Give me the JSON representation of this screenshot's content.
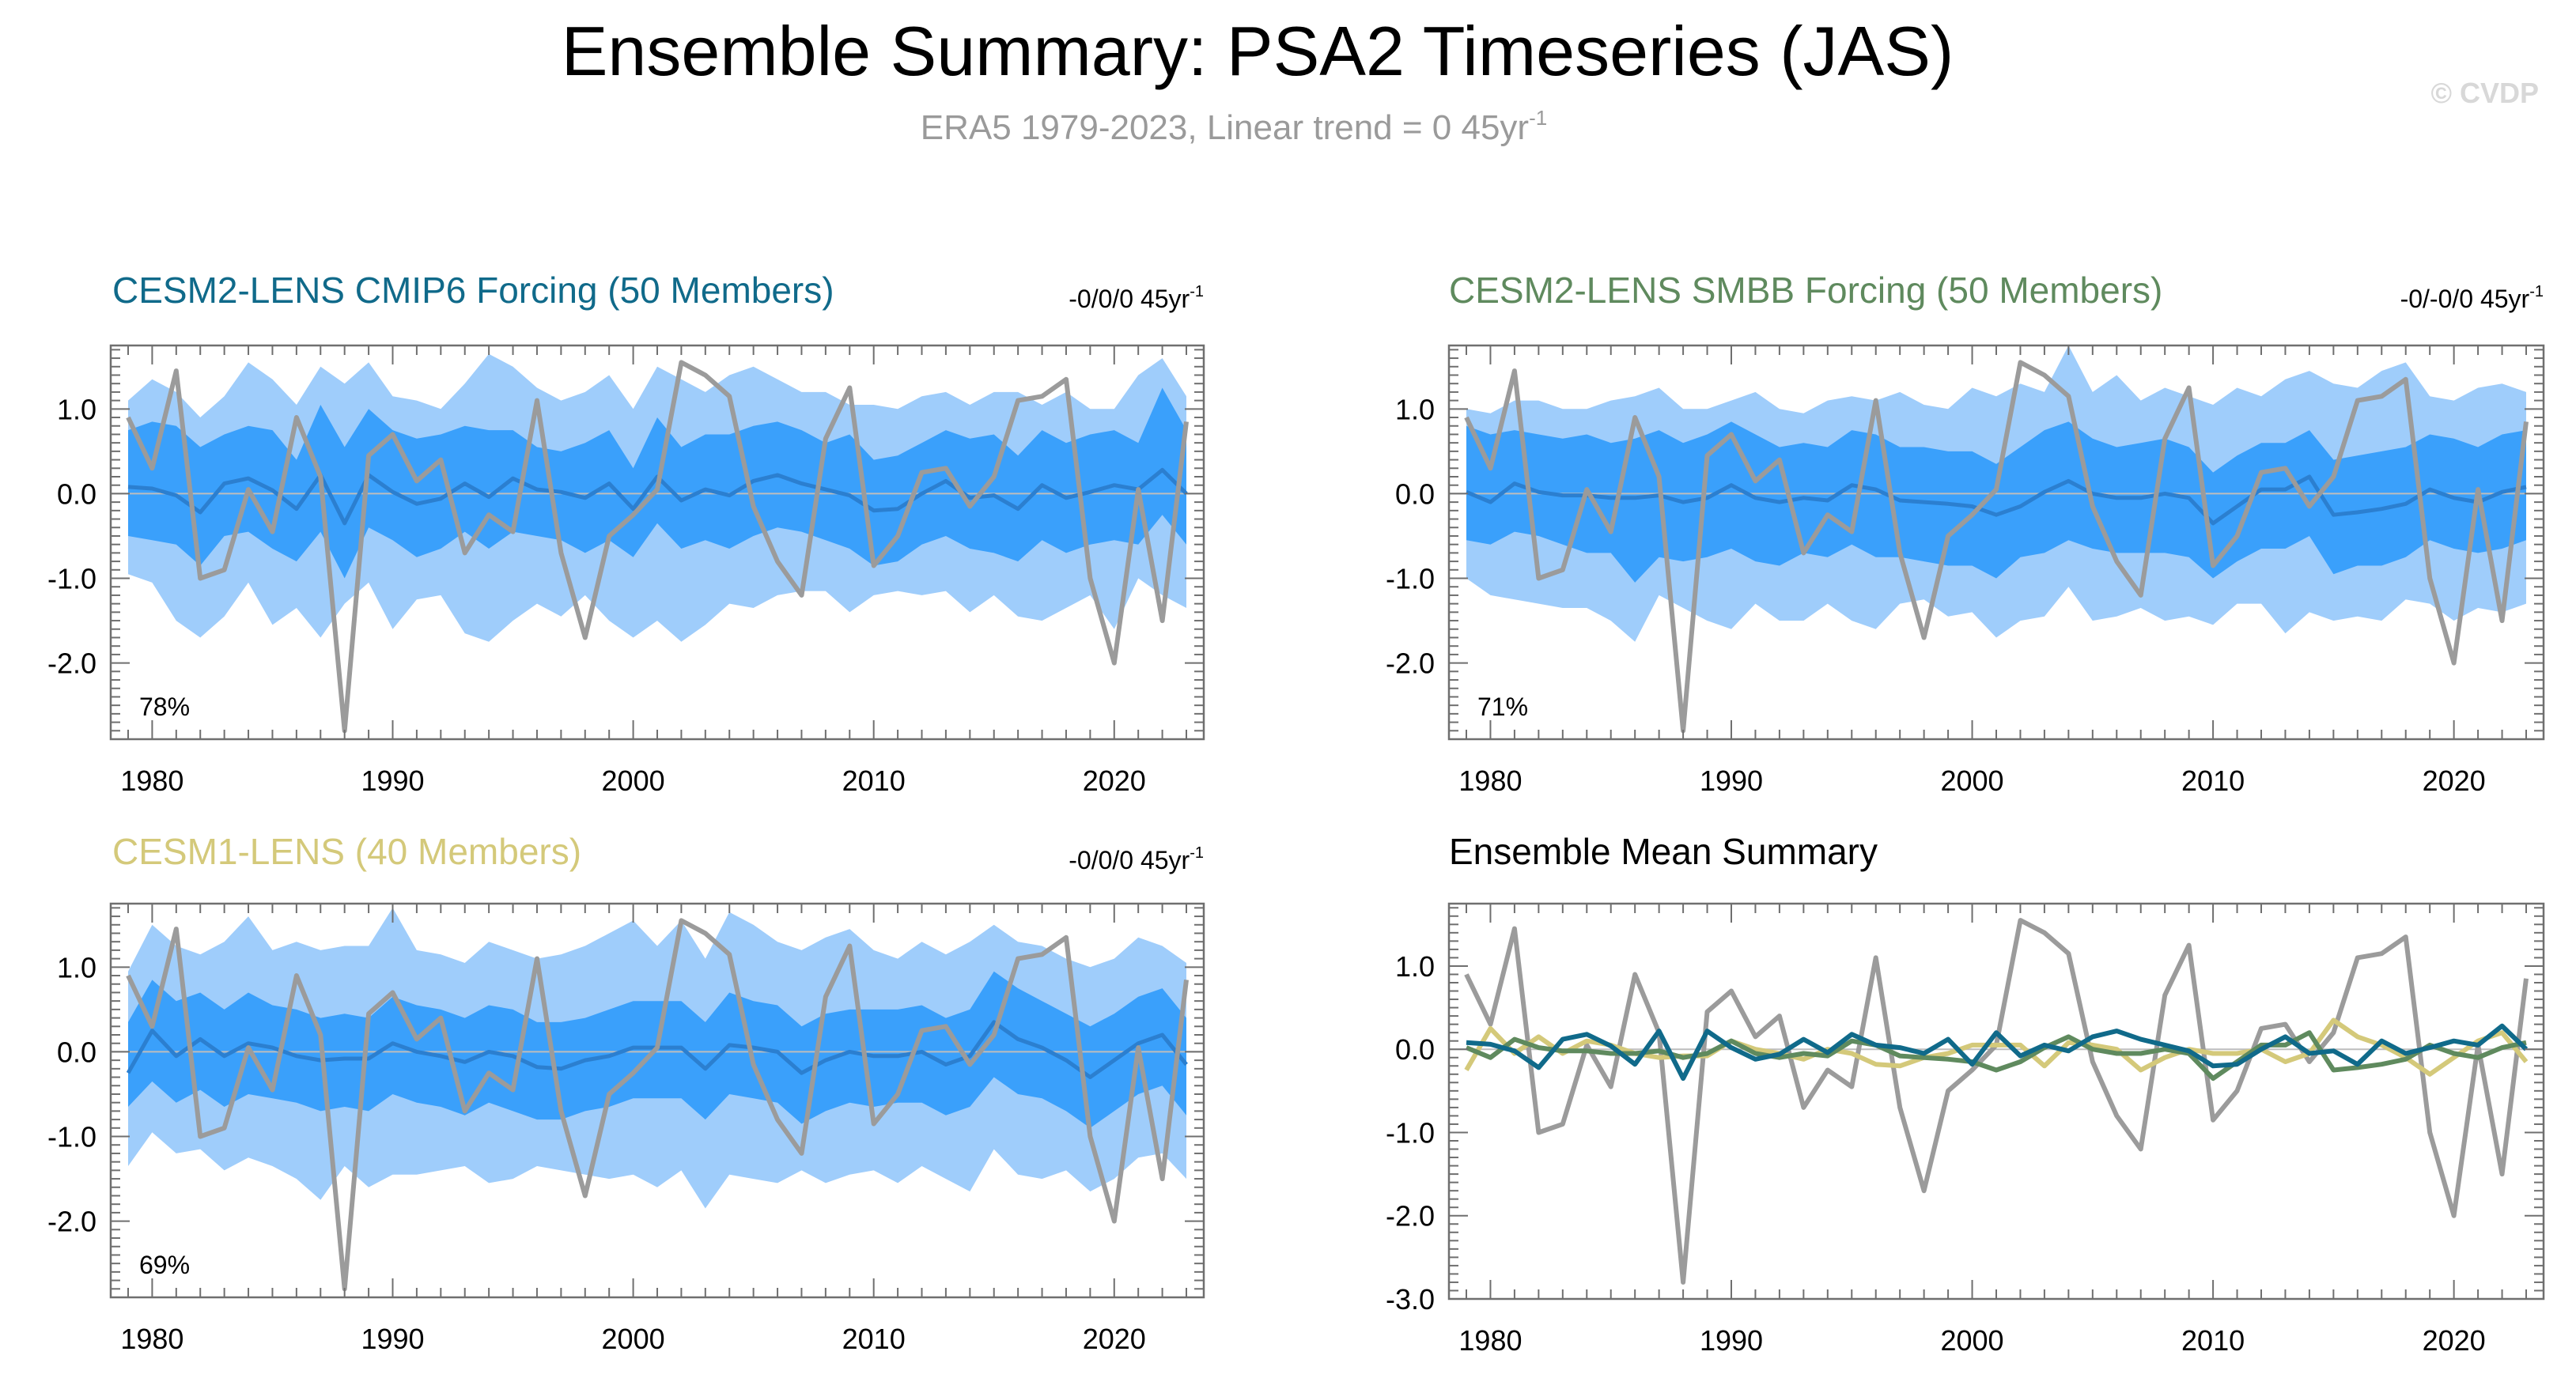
{
  "header": {
    "title": "Ensemble Summary: PSA2 Timeseries (JAS)",
    "subtitle_prefix": "ERA5 1979-2023, Linear trend = 0 45yr",
    "subtitle_sup": "-1",
    "watermark": "© CVDP"
  },
  "colors": {
    "band_outer": "#9fcdfb",
    "band_inner": "#3aa0fb",
    "ens_mean": "#2b7fd0",
    "obs": "#9b9b9b",
    "cesm2_cmip6": "#106a8a",
    "cesm2_smbb": "#5f8a5e",
    "cesm1": "#d4c97a",
    "zero_line": "#bdbdbd"
  },
  "chart_data": [
    {
      "id": "p1",
      "type": "area",
      "title": "CESM2-LENS CMIP6 Forcing (50 Members)",
      "title_color": "#106a8a",
      "trend": "-0/0/0 45yr",
      "trend_sup": "-1",
      "percent": "78%",
      "ylim": [
        -2.9,
        1.75
      ],
      "yticks": [
        1.0,
        0.0,
        -1.0,
        -2.0
      ],
      "ytick_labels": [
        "1.0",
        "0.0",
        "-1.0",
        "-2.0"
      ],
      "xticks": [
        1980,
        1990,
        2000,
        2010,
        2020
      ],
      "ens_mean": [
        0.08,
        0.06,
        -0.02,
        -0.22,
        0.12,
        0.18,
        0.04,
        -0.18,
        0.22,
        -0.35,
        0.22,
        0.02,
        -0.12,
        -0.06,
        0.12,
        -0.04,
        0.18,
        0.05,
        0.02,
        -0.05,
        0.12,
        -0.18,
        0.2,
        -0.08,
        0.05,
        -0.02,
        0.15,
        0.22,
        0.12,
        0.05,
        -0.02,
        -0.2,
        -0.18,
        0.0,
        0.15,
        -0.05,
        -0.02,
        -0.18,
        0.1,
        -0.05,
        0.02,
        0.1,
        0.05,
        0.28,
        0.0
      ],
      "inner_upper": [
        0.75,
        0.85,
        0.8,
        0.55,
        0.7,
        0.8,
        0.75,
        0.4,
        1.05,
        0.55,
        1.0,
        0.75,
        0.65,
        0.7,
        0.8,
        0.75,
        0.75,
        0.55,
        0.5,
        0.6,
        0.75,
        0.3,
        0.9,
        0.55,
        0.7,
        0.7,
        0.8,
        0.85,
        0.75,
        0.6,
        0.7,
        0.4,
        0.45,
        0.6,
        0.75,
        0.65,
        0.7,
        0.45,
        0.75,
        0.6,
        0.7,
        0.75,
        0.6,
        1.25,
        0.75
      ],
      "inner_lower": [
        -0.5,
        -0.55,
        -0.6,
        -0.85,
        -0.5,
        -0.45,
        -0.65,
        -0.8,
        -0.45,
        -1.0,
        -0.4,
        -0.55,
        -0.75,
        -0.65,
        -0.45,
        -0.65,
        -0.45,
        -0.5,
        -0.55,
        -0.7,
        -0.55,
        -0.75,
        -0.35,
        -0.65,
        -0.55,
        -0.65,
        -0.5,
        -0.4,
        -0.45,
        -0.55,
        -0.65,
        -0.85,
        -0.8,
        -0.6,
        -0.5,
        -0.65,
        -0.7,
        -0.8,
        -0.55,
        -0.7,
        -0.6,
        -0.55,
        -0.6,
        -0.25,
        -0.6
      ],
      "outer_upper": [
        1.1,
        1.35,
        1.2,
        0.9,
        1.15,
        1.55,
        1.35,
        1.05,
        1.5,
        1.3,
        1.55,
        1.15,
        1.1,
        1.0,
        1.3,
        1.65,
        1.5,
        1.25,
        1.1,
        1.2,
        1.4,
        1.0,
        1.5,
        1.35,
        1.2,
        1.4,
        1.5,
        1.35,
        1.2,
        1.2,
        1.05,
        1.05,
        1.0,
        1.15,
        1.2,
        1.05,
        1.2,
        1.2,
        1.05,
        1.2,
        1.0,
        1.0,
        1.4,
        1.6,
        1.15
      ],
      "outer_lower": [
        -0.95,
        -1.05,
        -1.5,
        -1.7,
        -1.45,
        -1.05,
        -1.55,
        -1.35,
        -1.7,
        -1.3,
        -1.05,
        -1.6,
        -1.25,
        -1.2,
        -1.65,
        -1.75,
        -1.5,
        -1.3,
        -1.45,
        -1.2,
        -1.5,
        -1.7,
        -1.5,
        -1.75,
        -1.55,
        -1.3,
        -1.35,
        -1.2,
        -1.15,
        -1.15,
        -1.4,
        -1.2,
        -1.15,
        -1.2,
        -1.15,
        -1.4,
        -1.2,
        -1.45,
        -1.5,
        -1.35,
        -1.2,
        -1.6,
        -1.0,
        -1.2,
        -1.35
      ]
    },
    {
      "id": "p2",
      "type": "area",
      "title": "CESM2-LENS SMBB Forcing (50 Members)",
      "title_color": "#5f8a5e",
      "trend": "-0/-0/0 45yr",
      "trend_sup": "-1",
      "percent": "71%",
      "ylim": [
        -2.9,
        1.75
      ],
      "yticks": [
        1.0,
        0.0,
        -1.0,
        -2.0
      ],
      "ytick_labels": [
        "1.0",
        "0.0",
        "-1.0",
        "-2.0"
      ],
      "xticks": [
        1980,
        1990,
        2000,
        2010,
        2020
      ],
      "ens_mean": [
        0.02,
        -0.1,
        0.12,
        0.02,
        -0.02,
        -0.02,
        -0.05,
        -0.05,
        -0.02,
        -0.1,
        -0.05,
        0.1,
        -0.05,
        -0.1,
        -0.05,
        -0.08,
        0.1,
        0.05,
        -0.08,
        -0.1,
        -0.12,
        -0.15,
        -0.25,
        -0.15,
        0.02,
        0.15,
        0.0,
        -0.05,
        -0.05,
        0.0,
        -0.05,
        -0.35,
        -0.15,
        0.05,
        0.05,
        0.2,
        -0.25,
        -0.22,
        -0.18,
        -0.12,
        0.05,
        -0.05,
        -0.1,
        0.02,
        0.08
      ],
      "inner_upper": [
        0.8,
        0.7,
        0.75,
        0.7,
        0.65,
        0.7,
        0.6,
        0.65,
        0.75,
        0.6,
        0.7,
        0.85,
        0.7,
        0.55,
        0.6,
        0.55,
        0.75,
        0.7,
        0.55,
        0.55,
        0.5,
        0.5,
        0.35,
        0.55,
        0.75,
        0.85,
        0.65,
        0.55,
        0.6,
        0.65,
        0.55,
        0.25,
        0.45,
        0.6,
        0.6,
        0.75,
        0.4,
        0.45,
        0.5,
        0.55,
        0.7,
        0.65,
        0.55,
        0.7,
        0.75
      ],
      "inner_lower": [
        -0.55,
        -0.6,
        -0.45,
        -0.5,
        -0.6,
        -0.7,
        -0.7,
        -1.05,
        -0.75,
        -0.8,
        -0.75,
        -0.65,
        -0.8,
        -0.85,
        -0.7,
        -0.75,
        -0.6,
        -0.75,
        -0.75,
        -0.8,
        -0.85,
        -0.85,
        -1.0,
        -0.75,
        -0.7,
        -0.55,
        -0.65,
        -0.7,
        -0.7,
        -0.7,
        -0.75,
        -1.0,
        -0.8,
        -0.65,
        -0.65,
        -0.5,
        -0.95,
        -0.85,
        -0.85,
        -0.75,
        -0.55,
        -0.65,
        -0.7,
        -0.65,
        -0.55
      ],
      "outer_upper": [
        1.0,
        0.95,
        1.1,
        1.1,
        1.0,
        1.0,
        1.1,
        1.15,
        1.25,
        1.0,
        1.0,
        1.1,
        1.2,
        1.0,
        0.95,
        1.1,
        1.15,
        1.1,
        1.2,
        1.05,
        1.0,
        1.25,
        1.15,
        1.3,
        1.2,
        1.75,
        1.2,
        1.4,
        1.1,
        1.25,
        1.15,
        1.05,
        1.25,
        1.15,
        1.35,
        1.45,
        1.3,
        1.25,
        1.45,
        1.55,
        1.15,
        1.1,
        1.25,
        1.3,
        1.2
      ],
      "outer_lower": [
        -1.0,
        -1.2,
        -1.25,
        -1.3,
        -1.35,
        -1.35,
        -1.5,
        -1.75,
        -1.2,
        -1.35,
        -1.5,
        -1.6,
        -1.3,
        -1.5,
        -1.5,
        -1.3,
        -1.5,
        -1.6,
        -1.3,
        -1.25,
        -1.45,
        -1.4,
        -1.7,
        -1.5,
        -1.45,
        -1.1,
        -1.5,
        -1.45,
        -1.35,
        -1.5,
        -1.45,
        -1.55,
        -1.3,
        -1.3,
        -1.65,
        -1.4,
        -1.5,
        -1.45,
        -1.5,
        -1.25,
        -1.3,
        -1.5,
        -1.35,
        -1.4,
        -1.3
      ]
    },
    {
      "id": "p3",
      "type": "area",
      "title": "CESM1-LENS (40 Members)",
      "title_color": "#d4c97a",
      "trend": "-0/0/0 45yr",
      "trend_sup": "-1",
      "percent": "69%",
      "ylim": [
        -2.9,
        1.75
      ],
      "yticks": [
        1.0,
        0.0,
        -1.0,
        -2.0
      ],
      "ytick_labels": [
        "1.0",
        "0.0",
        "-1.0",
        "-2.0"
      ],
      "xticks": [
        1980,
        1990,
        2000,
        2010,
        2020
      ],
      "ens_mean": [
        -0.25,
        0.25,
        -0.05,
        0.15,
        -0.05,
        0.1,
        0.05,
        -0.05,
        -0.1,
        -0.08,
        -0.08,
        0.1,
        0.0,
        -0.05,
        -0.12,
        0.0,
        -0.05,
        -0.18,
        -0.2,
        -0.1,
        -0.05,
        0.05,
        0.05,
        0.05,
        -0.2,
        0.08,
        0.05,
        0.0,
        -0.25,
        -0.1,
        0.0,
        -0.05,
        -0.05,
        0.0,
        -0.15,
        -0.05,
        0.35,
        0.15,
        0.05,
        -0.1,
        -0.3,
        -0.1,
        0.1,
        0.2,
        -0.15
      ],
      "inner_upper": [
        0.35,
        0.85,
        0.6,
        0.7,
        0.5,
        0.7,
        0.55,
        0.5,
        0.4,
        0.45,
        0.4,
        0.65,
        0.55,
        0.5,
        0.4,
        0.55,
        0.5,
        0.35,
        0.35,
        0.4,
        0.5,
        0.6,
        0.6,
        0.6,
        0.35,
        0.7,
        0.6,
        0.55,
        0.3,
        0.45,
        0.5,
        0.5,
        0.5,
        0.55,
        0.4,
        0.5,
        0.95,
        0.75,
        0.6,
        0.45,
        0.3,
        0.45,
        0.65,
        0.75,
        0.4
      ],
      "inner_lower": [
        -0.65,
        -0.35,
        -0.6,
        -0.45,
        -0.65,
        -0.5,
        -0.55,
        -0.6,
        -0.7,
        -0.65,
        -0.7,
        -0.5,
        -0.6,
        -0.65,
        -0.75,
        -0.6,
        -0.7,
        -0.8,
        -0.8,
        -0.7,
        -0.65,
        -0.55,
        -0.55,
        -0.55,
        -0.8,
        -0.5,
        -0.55,
        -0.6,
        -0.85,
        -0.7,
        -0.6,
        -0.65,
        -0.6,
        -0.6,
        -0.75,
        -0.65,
        -0.3,
        -0.5,
        -0.55,
        -0.7,
        -0.9,
        -0.7,
        -0.5,
        -0.4,
        -0.75
      ],
      "outer_upper": [
        0.95,
        1.5,
        1.25,
        1.15,
        1.3,
        1.6,
        1.2,
        1.3,
        1.2,
        1.25,
        1.25,
        1.7,
        1.2,
        1.15,
        1.05,
        1.3,
        1.2,
        1.1,
        1.15,
        1.25,
        1.4,
        1.55,
        1.25,
        1.55,
        1.1,
        1.65,
        1.5,
        1.3,
        1.2,
        1.35,
        1.45,
        1.2,
        1.1,
        1.3,
        1.15,
        1.3,
        1.5,
        1.3,
        1.25,
        1.1,
        1.0,
        1.1,
        1.35,
        1.25,
        1.05
      ],
      "outer_lower": [
        -1.35,
        -0.95,
        -1.2,
        -1.15,
        -1.4,
        -1.25,
        -1.35,
        -1.5,
        -1.75,
        -1.35,
        -1.6,
        -1.45,
        -1.45,
        -1.4,
        -1.35,
        -1.55,
        -1.5,
        -1.35,
        -1.4,
        -1.45,
        -1.5,
        -1.45,
        -1.6,
        -1.4,
        -1.85,
        -1.45,
        -1.5,
        -1.55,
        -1.4,
        -1.55,
        -1.45,
        -1.4,
        -1.55,
        -1.35,
        -1.5,
        -1.65,
        -1.15,
        -1.45,
        -1.5,
        -1.4,
        -1.65,
        -1.5,
        -1.25,
        -1.2,
        -1.5
      ]
    },
    {
      "id": "p4",
      "type": "line",
      "title": "Ensemble Mean Summary",
      "title_color": "#000000",
      "trend": "",
      "trend_sup": "",
      "percent": "",
      "ylim": [
        -3.0,
        1.75
      ],
      "yticks": [
        1.0,
        0.0,
        -1.0,
        -2.0,
        -3.0
      ],
      "ytick_labels": [
        "1.0",
        "0.0",
        "-1.0",
        "-2.0",
        "-3.0"
      ],
      "xticks": [
        1980,
        1990,
        2000,
        2010,
        2020
      ],
      "series": [
        {
          "name": "CESM2-LENS CMIP6 Forcing",
          "color_key": "cesm2_cmip6"
        },
        {
          "name": "CESM2-LENS SMBB Forcing",
          "color_key": "cesm2_smbb"
        },
        {
          "name": "CESM1-LENS",
          "color_key": "cesm1"
        }
      ]
    }
  ],
  "observations": {
    "name": "ERA5",
    "years_start": 1979,
    "values": [
      0.9,
      0.3,
      1.45,
      -1.0,
      -0.9,
      0.05,
      -0.45,
      0.9,
      0.2,
      -2.8,
      0.45,
      0.7,
      0.15,
      0.4,
      -0.7,
      -0.25,
      -0.45,
      1.1,
      -0.7,
      -1.7,
      -0.5,
      -0.25,
      0.05,
      1.55,
      1.4,
      1.15,
      -0.15,
      -0.8,
      -1.2,
      0.65,
      1.25,
      -0.85,
      -0.5,
      0.25,
      0.3,
      -0.15,
      0.2,
      1.1,
      1.15,
      1.35,
      -1.0,
      -2.0,
      0.05,
      -1.5,
      0.85
    ]
  }
}
